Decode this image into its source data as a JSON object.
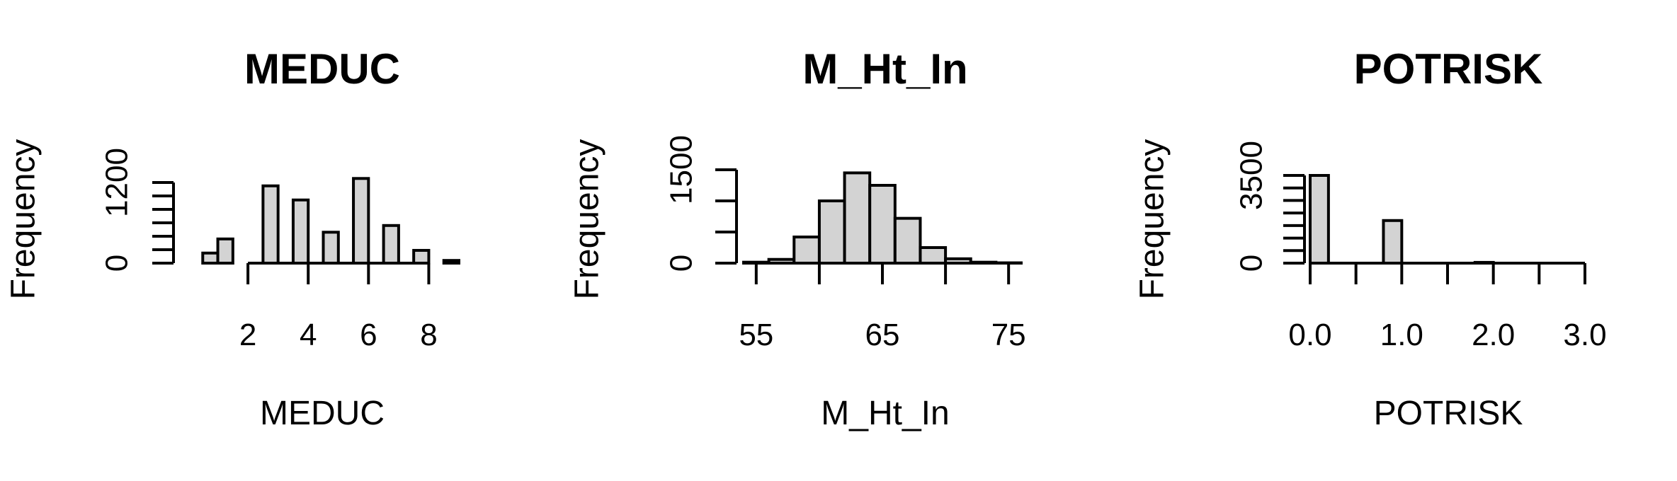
{
  "chart_data": [
    {
      "type": "bar",
      "title": "MEDUC",
      "xlabel": "MEDUC",
      "ylabel": "Frequency",
      "xlim": [
        0.0,
        9.0
      ],
      "ylim": [
        0,
        1200
      ],
      "x_ticks": [
        2,
        4,
        6,
        8
      ],
      "x_tick_labels": [
        "2",
        "4",
        "6",
        "8"
      ],
      "y_ticks": [
        0,
        200,
        400,
        600,
        800,
        1000,
        1200
      ],
      "y_tick_labels": [
        "0",
        "1200"
      ],
      "bins": [
        {
          "x0": 0.5,
          "x1": 1.0,
          "count": 150
        },
        {
          "x0": 1.0,
          "x1": 1.5,
          "count": 360
        },
        {
          "x0": 1.5,
          "x1": 2.0,
          "count": 0
        },
        {
          "x0": 2.0,
          "x1": 2.5,
          "count": 0
        },
        {
          "x0": 2.5,
          "x1": 3.0,
          "count": 1150
        },
        {
          "x0": 3.0,
          "x1": 3.5,
          "count": 0
        },
        {
          "x0": 3.5,
          "x1": 4.0,
          "count": 940
        },
        {
          "x0": 4.0,
          "x1": 4.5,
          "count": 0
        },
        {
          "x0": 4.5,
          "x1": 5.0,
          "count": 460
        },
        {
          "x0": 5.0,
          "x1": 5.5,
          "count": 0
        },
        {
          "x0": 5.5,
          "x1": 6.0,
          "count": 1260
        },
        {
          "x0": 6.0,
          "x1": 6.5,
          "count": 0
        },
        {
          "x0": 6.5,
          "x1": 7.0,
          "count": 560
        },
        {
          "x0": 7.0,
          "x1": 7.5,
          "count": 0
        },
        {
          "x0": 7.5,
          "x1": 8.0,
          "count": 190
        },
        {
          "x0": 8.0,
          "x1": 8.5,
          "count": 0
        },
        {
          "x0": 8.5,
          "x1": 9.0,
          "count": 40
        }
      ]
    },
    {
      "type": "bar",
      "title": "M_Ht_In",
      "xlabel": "M_Ht_In",
      "ylabel": "Frequency",
      "xlim": [
        54,
        76
      ],
      "ylim": [
        0,
        1500
      ],
      "x_ticks": [
        55,
        60,
        65,
        70,
        75
      ],
      "x_tick_labels": [
        "55",
        "",
        "65",
        "",
        "75"
      ],
      "y_ticks": [
        0,
        500,
        1000,
        1500
      ],
      "y_tick_labels": [
        "0",
        "",
        "",
        "1500"
      ],
      "bins": [
        {
          "x0": 54,
          "x1": 56,
          "count": 15
        },
        {
          "x0": 56,
          "x1": 58,
          "count": 60
        },
        {
          "x0": 58,
          "x1": 60,
          "count": 420
        },
        {
          "x0": 60,
          "x1": 62,
          "count": 1000
        },
        {
          "x0": 62,
          "x1": 64,
          "count": 1450
        },
        {
          "x0": 64,
          "x1": 66,
          "count": 1250
        },
        {
          "x0": 66,
          "x1": 68,
          "count": 720
        },
        {
          "x0": 68,
          "x1": 70,
          "count": 250
        },
        {
          "x0": 70,
          "x1": 72,
          "count": 70
        },
        {
          "x0": 72,
          "x1": 74,
          "count": 15
        },
        {
          "x0": 74,
          "x1": 76,
          "count": 5
        }
      ]
    },
    {
      "type": "bar",
      "title": "POTRISK",
      "xlabel": "POTRISK",
      "ylabel": "Frequency",
      "xlim": [
        0.0,
        3.0
      ],
      "ylim": [
        0,
        3500
      ],
      "x_ticks": [
        0.0,
        0.5,
        1.0,
        1.5,
        2.0,
        2.5,
        3.0
      ],
      "x_tick_labels": [
        "0.0",
        "",
        "1.0",
        "",
        "2.0",
        "",
        "3.0"
      ],
      "y_ticks": [
        0,
        500,
        1000,
        1500,
        2000,
        2500,
        3000,
        3500
      ],
      "y_tick_labels": [
        "0",
        "3500"
      ],
      "bins": [
        {
          "x0": 0.0,
          "x1": 0.2,
          "count": 3500
        },
        {
          "x0": 0.2,
          "x1": 0.8,
          "count": 0
        },
        {
          "x0": 0.8,
          "x1": 1.0,
          "count": 1700
        },
        {
          "x0": 1.0,
          "x1": 1.8,
          "count": 0
        },
        {
          "x0": 1.8,
          "x1": 2.0,
          "count": 30
        },
        {
          "x0": 2.0,
          "x1": 3.0,
          "count": 0
        }
      ]
    }
  ]
}
